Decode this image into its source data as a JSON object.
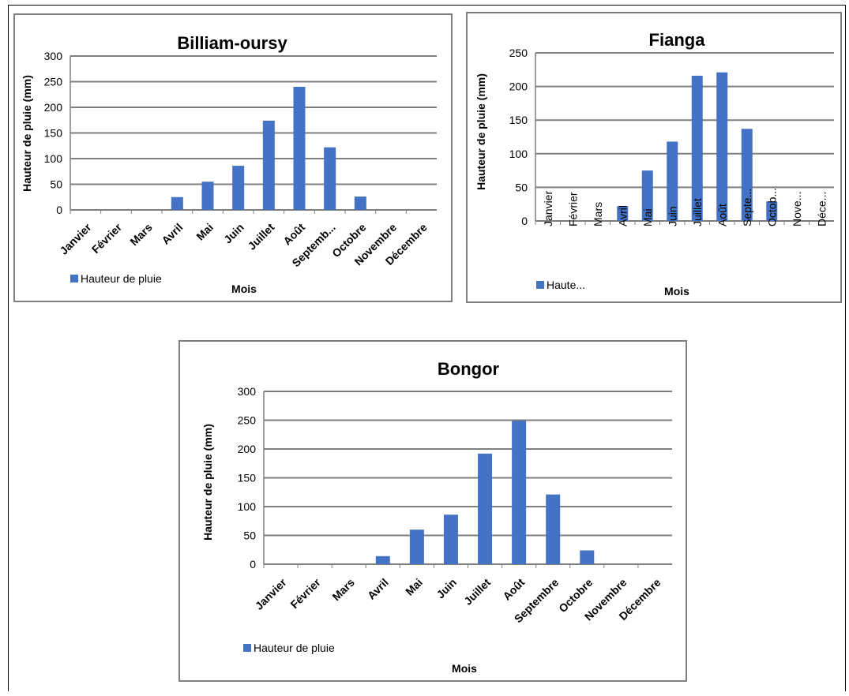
{
  "chart_data": [
    {
      "id": "billiam",
      "type": "bar",
      "title": "Billiam-oursy",
      "xlabel": "Mois",
      "ylabel": "Hauteur de pluie (mm)",
      "ylim": [
        0,
        300
      ],
      "yticks": [
        0,
        50,
        100,
        150,
        200,
        250,
        300
      ],
      "grid": true,
      "legend_position": "bottom-left",
      "category_labels_style": "rotated-bold",
      "categories": [
        "Janvier",
        "Février",
        "Mars",
        "Avril",
        "Mai",
        "Juin",
        "Juillet",
        "Août",
        "Septemb...",
        "Octobre",
        "Novembre",
        "Décembre"
      ],
      "series": [
        {
          "name": "Hauteur de pluie",
          "color": "#4472c4",
          "values": [
            0,
            0,
            0,
            25,
            55,
            86,
            174,
            240,
            122,
            26,
            0,
            0
          ]
        }
      ]
    },
    {
      "id": "fianga",
      "type": "bar",
      "title": "Fianga",
      "xlabel": "Mois",
      "ylabel": "Hauteur de pluie (mm)",
      "ylim": [
        0,
        250
      ],
      "yticks": [
        0,
        50,
        100,
        150,
        200,
        250
      ],
      "grid": true,
      "legend_position": "bottom-left",
      "category_labels_style": "vertical",
      "categories": [
        "Janvier",
        "Février",
        "Mars",
        "Avril",
        "Mai",
        "Juin",
        "Juillet",
        "Août",
        "Septe...",
        "Octob...",
        "Nove...",
        "Déce..."
      ],
      "series": [
        {
          "name": "Haute...",
          "color": "#4472c4",
          "values": [
            0,
            0,
            0,
            22,
            75,
            118,
            216,
            221,
            137,
            29,
            0,
            0
          ]
        }
      ]
    },
    {
      "id": "bongor",
      "type": "bar",
      "title": "Bongor",
      "xlabel": "Mois",
      "ylabel": "Hauteur de pluie (mm)",
      "ylim": [
        0,
        300
      ],
      "yticks": [
        0,
        50,
        100,
        150,
        200,
        250,
        300
      ],
      "grid": true,
      "legend_position": "bottom-left",
      "category_labels_style": "rotated-bold",
      "categories": [
        "Janvier",
        "Février",
        "Mars",
        "Avril",
        "Mai",
        "Juin",
        "Juillet",
        "Août",
        "Septembre",
        "Octobre",
        "Novembre",
        "Décembre"
      ],
      "series": [
        {
          "name": "Hauteur de pluie",
          "color": "#4472c4",
          "values": [
            0,
            0,
            0,
            14,
            60,
            86,
            192,
            249,
            121,
            24,
            0,
            0
          ]
        }
      ]
    }
  ]
}
